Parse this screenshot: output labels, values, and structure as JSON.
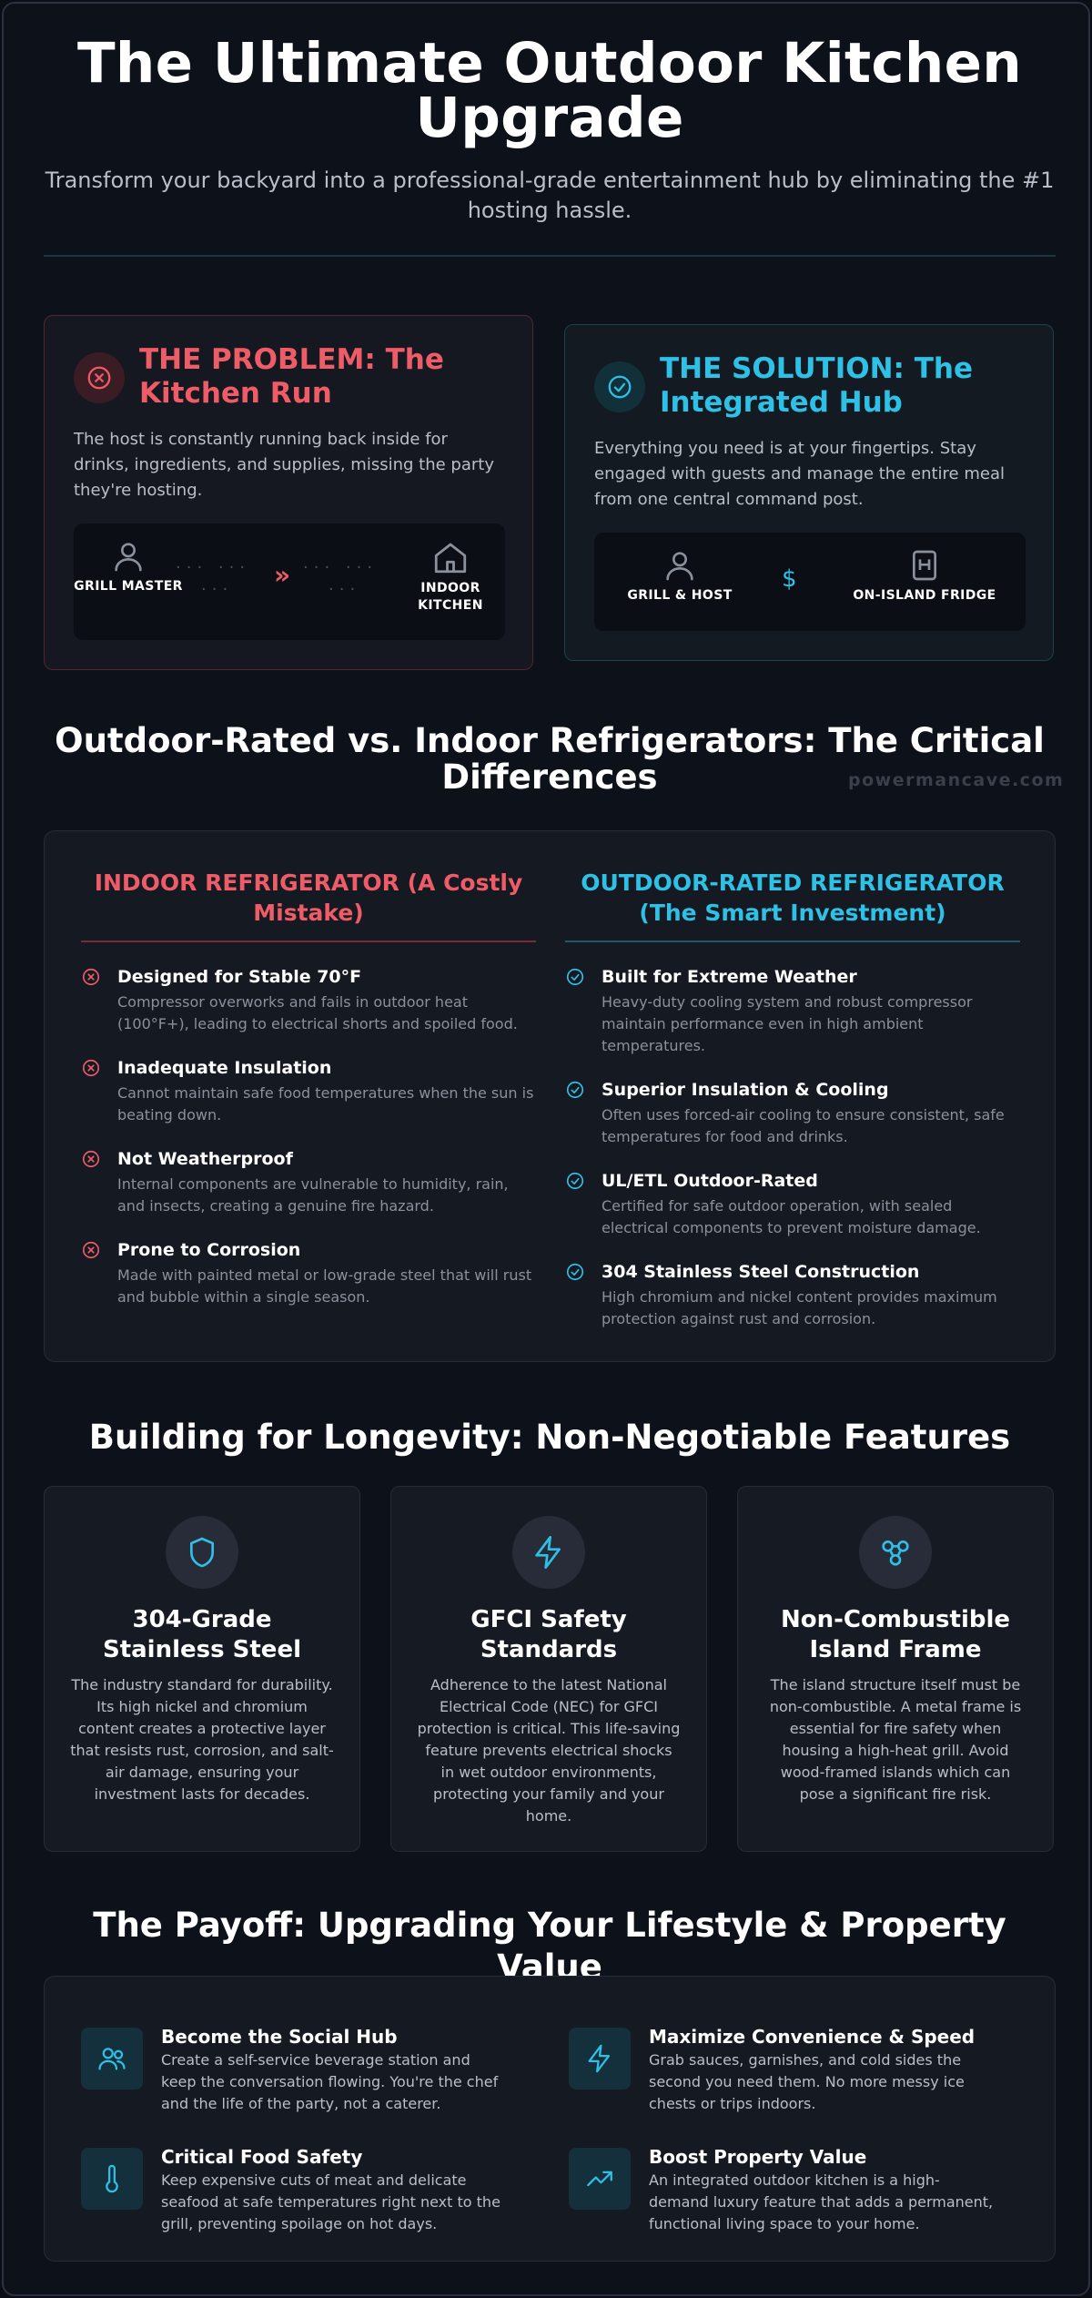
{
  "hero": {
    "title": "The Ultimate Outdoor Kitchen Upgrade",
    "subtitle": "Transform your backyard into a professional-grade entertainment hub by eliminating the #1 hosting hassle."
  },
  "problem": {
    "title": "THE PROBLEM: The Kitchen Run",
    "body": "The host is constantly running back inside for drinks, ingredients, and supplies, missing the party they're hosting.",
    "from_label": "GRILL MASTER",
    "to_label": "INDOOR KITCHEN",
    "arrow": "»",
    "icons": [
      "x-circle-icon",
      "person-icon",
      "house-icon"
    ]
  },
  "solution": {
    "title": "THE SOLUTION: The Integrated Hub",
    "body": "Everything you need is at your fingertips. Stay engaged with guests and manage the entire meal from one central command post.",
    "from_label": "GRILL & HOST",
    "to_label": "ON-ISLAND FRIDGE",
    "connector": "$",
    "icons": [
      "check-circle-icon",
      "person-icon",
      "fridge-icon"
    ]
  },
  "comparison": {
    "title": "Outdoor-Rated vs. Indoor Refrigerators: The Critical Differences",
    "watermark": "powermancave.com",
    "indoor": {
      "heading": "INDOOR REFRIGERATOR (A Costly Mistake)",
      "items": [
        {
          "title": "Designed for Stable 70°F",
          "text": "Compressor overworks and fails in outdoor heat (100°F+), leading to electrical shorts and spoiled food."
        },
        {
          "title": "Inadequate Insulation",
          "text": "Cannot maintain safe food temperatures when the sun is beating down."
        },
        {
          "title": "Not Weatherproof",
          "text": "Internal components are vulnerable to humidity, rain, and insects, creating a genuine fire hazard."
        },
        {
          "title": "Prone to Corrosion",
          "text": "Made with painted metal or low-grade steel that will rust and bubble within a single season."
        }
      ]
    },
    "outdoor": {
      "heading": "OUTDOOR-RATED REFRIGERATOR (The Smart Investment)",
      "items": [
        {
          "title": "Built for Extreme Weather",
          "text": "Heavy-duty cooling system and robust compressor maintain performance even in high ambient temperatures."
        },
        {
          "title": "Superior Insulation & Cooling",
          "text": "Often uses forced-air cooling to ensure consistent, safe temperatures for food and drinks."
        },
        {
          "title": "UL/ETL Outdoor-Rated",
          "text": "Certified for safe outdoor operation, with sealed electrical components to prevent moisture damage."
        },
        {
          "title": "304 Stainless Steel Construction",
          "text": "High chromium and nickel content provides maximum protection against rust and corrosion."
        }
      ]
    }
  },
  "features": {
    "title": "Building for Longevity: Non-Negotiable Features",
    "items": [
      {
        "icon": "shield-icon",
        "title": "304-Grade Stainless Steel",
        "text": "The industry standard for durability. Its high nickel and chromium content creates a protective layer that resists rust, corrosion, and salt-air damage, ensuring your investment lasts for decades."
      },
      {
        "icon": "lightning-icon",
        "title": "GFCI Safety Standards",
        "text": "Adherence to the latest National Electrical Code (NEC) for GFCI protection is critical. This life-saving feature prevents electrical shocks in wet outdoor environments, protecting your family and your home."
      },
      {
        "icon": "frame-nodes-icon",
        "title": "Non-Combustible Island Frame",
        "text": "The island structure itself must be non-combustible. A metal frame is essential for fire safety when housing a high-heat grill. Avoid wood-framed islands which can pose a significant fire risk."
      }
    ]
  },
  "payoff": {
    "title": "The Payoff: Upgrading Your Lifestyle & Property Value",
    "items": [
      {
        "icon": "users-icon",
        "title": "Become the Social Hub",
        "text": "Create a self-service beverage station and keep the conversation flowing. You're the chef and the life of the party, not a caterer."
      },
      {
        "icon": "lightning-icon",
        "title": "Maximize Convenience & Speed",
        "text": "Grab sauces, garnishes, and cold sides the second you need them. No more messy ice chests or trips indoors."
      },
      {
        "icon": "thermometer-icon",
        "title": "Critical Food Safety",
        "text": "Keep expensive cuts of meat and delicate seafood at safe temperatures right next to the grill, preventing spoilage on hot days."
      },
      {
        "icon": "trending-up-icon",
        "title": "Boost Property Value",
        "text": "An integrated outdoor kitchen is a high-demand luxury feature that adds a permanent, functional living space to your home."
      }
    ]
  },
  "colors": {
    "problem_accent": "#ee5c67",
    "solution_accent": "#2fc0e6",
    "background": "#0d1119"
  }
}
